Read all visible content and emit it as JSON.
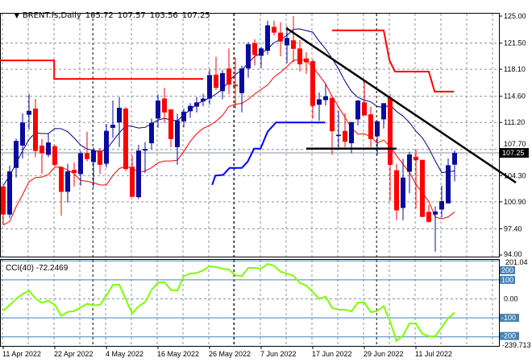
{
  "header": {
    "symbol": "BRENT.fs,Daily",
    "open": "105.72",
    "high": "107.57",
    "low": "103.56",
    "close": "107.25",
    "menu_icon": "triangle-down-icon"
  },
  "colors": {
    "bull": "#0a0a9e",
    "bear": "#ff0000",
    "ma_high": "#000080",
    "ma_low": "#ff0000",
    "resistance_step": "#ff0000",
    "support_step": "#0000ff",
    "trendline": "#000000",
    "cci": "#7fff00",
    "cci_level": "#4682b4"
  },
  "chart_data": [
    {
      "type": "candlestick",
      "title": "BRENT.fs,Daily",
      "ylim": [
        94.0,
        125.0
      ],
      "price_ticks": [
        "125.00",
        "121.50",
        "118.10",
        "114.60",
        "111.20",
        "107.70",
        "104.30",
        "100.90",
        "97.40",
        "94.00"
      ],
      "date_ticks": [
        {
          "bar": 0,
          "label": "11 Apr 2022"
        },
        {
          "bar": 8,
          "label": "22 Apr 2022"
        },
        {
          "bar": 16,
          "label": "4 May 2022"
        },
        {
          "bar": 24,
          "label": "16 May 2022"
        },
        {
          "bar": 32,
          "label": "26 May 2022"
        },
        {
          "bar": 40,
          "label": "7 Jun 2022"
        },
        {
          "bar": 48,
          "label": "17 Jun 2022"
        },
        {
          "bar": 56,
          "label": "29 Jun 2022"
        },
        {
          "bar": 64,
          "label": "11 Jul 2022"
        }
      ],
      "current_price": "107.25",
      "ohlc": [
        [
          102.9,
          103.0,
          97.9,
          99.25
        ],
        [
          99.25,
          105.6,
          98.8,
          104.85
        ],
        [
          105.3,
          109.1,
          104.05,
          108.8
        ],
        [
          108.2,
          112.4,
          106.55,
          111.2
        ],
        [
          112.2,
          114.9,
          110.3,
          112.7
        ],
        [
          113.0,
          114.25,
          106.7,
          107.5
        ],
        [
          108.2,
          109.05,
          104.5,
          107.2
        ],
        [
          107.0,
          109.75,
          106.7,
          108.6
        ],
        [
          108.1,
          108.3,
          105.5,
          105.7
        ],
        [
          105.4,
          105.4,
          99.1,
          102.2
        ],
        [
          102.2,
          105.85,
          100.8,
          104.85
        ],
        [
          105.05,
          106.0,
          102.9,
          104.65
        ],
        [
          104.5,
          107.5,
          103.0,
          107.2
        ],
        [
          107.2,
          110.0,
          106.15,
          106.45
        ],
        [
          106.05,
          107.95,
          102.8,
          107.55
        ],
        [
          107.55,
          107.9,
          104.5,
          105.7
        ],
        [
          105.85,
          111.0,
          105.35,
          110.1
        ],
        [
          110.5,
          114.05,
          109.2,
          110.9
        ],
        [
          111.2,
          114.5,
          108.0,
          113.1
        ],
        [
          113.0,
          113.2,
          104.9,
          105.15
        ],
        [
          105.45,
          106.9,
          101.5,
          101.55
        ],
        [
          101.5,
          108.3,
          101.25,
          107.55
        ],
        [
          107.55,
          108.65,
          104.65,
          107.75
        ],
        [
          108.5,
          111.7,
          107.7,
          111.15
        ],
        [
          111.7,
          114.85,
          110.5,
          114.05
        ],
        [
          114.3,
          115.7,
          111.1,
          112.5
        ],
        [
          112.9,
          112.9,
          108.0,
          109.05
        ],
        [
          108.0,
          112.35,
          105.7,
          111.45
        ],
        [
          111.35,
          113.0,
          110.55,
          112.6
        ],
        [
          112.65,
          113.7,
          111.8,
          113.35
        ],
        [
          113.25,
          114.5,
          112.5,
          113.8
        ],
        [
          113.95,
          114.9,
          113.3,
          114.3
        ],
        [
          114.3,
          118.05,
          113.5,
          117.35
        ],
        [
          117.4,
          119.7,
          115.4,
          115.7
        ],
        [
          115.25,
          118.0,
          114.2,
          117.6
        ],
        [
          118.2,
          120.8,
          114.9,
          116.1
        ],
        [
          116.1,
          119.6,
          113.0,
          115.9
        ],
        [
          115.0,
          118.55,
          112.5,
          118.2
        ],
        [
          118.2,
          121.6,
          117.0,
          121.35
        ],
        [
          121.5,
          122.0,
          118.6,
          119.95
        ],
        [
          119.85,
          121.0,
          118.3,
          120.8
        ],
        [
          120.5,
          124.4,
          120.0,
          123.8
        ],
        [
          123.6,
          124.4,
          122.5,
          122.85
        ],
        [
          122.85,
          124.2,
          119.8,
          121.7
        ],
        [
          121.2,
          123.7,
          118.9,
          122.15
        ],
        [
          121.85,
          125.0,
          119.0,
          120.75
        ],
        [
          120.8,
          121.9,
          117.8,
          118.75
        ],
        [
          119.5,
          120.3,
          117.5,
          119.0
        ],
        [
          119.15,
          119.4,
          111.65,
          113.35
        ],
        [
          113.5,
          115.1,
          111.4,
          114.2
        ],
        [
          114.1,
          116.25,
          113.4,
          114.6
        ],
        [
          114.4,
          114.4,
          107.0,
          110.05
        ],
        [
          109.5,
          112.7,
          107.95,
          109.6
        ],
        [
          110.1,
          112.4,
          108.0,
          108.7
        ],
        [
          108.5,
          111.25,
          107.2,
          111.25
        ],
        [
          111.6,
          114.1,
          110.8,
          114.05
        ],
        [
          113.8,
          116.65,
          112.1,
          112.1
        ],
        [
          112.25,
          113.2,
          108.0,
          109.05
        ],
        [
          109.4,
          111.35,
          107.0,
          111.35
        ],
        [
          111.6,
          113.7,
          110.4,
          113.7
        ],
        [
          114.4,
          114.9,
          101.0,
          105.7
        ],
        [
          105.0,
          105.8,
          98.55,
          99.8
        ],
        [
          100.1,
          106.5,
          98.5,
          104.05
        ],
        [
          104.8,
          107.4,
          102.0,
          107.05
        ],
        [
          106.75,
          107.7,
          100.0,
          106.3
        ],
        [
          106.35,
          106.35,
          98.9,
          98.95
        ],
        [
          99.6,
          100.5,
          98.2,
          98.3
        ],
        [
          99.25,
          100.3,
          94.45,
          99.65
        ],
        [
          99.9,
          103.0,
          98.9,
          101.0
        ],
        [
          100.7,
          106.55,
          100.7,
          105.65
        ],
        [
          105.72,
          107.57,
          103.56,
          107.25
        ]
      ],
      "overlays": {
        "resistance_step_1": [
          [
            -0.5,
            119.25
          ],
          [
            7.9,
            119.25
          ],
          [
            7.9,
            116.85
          ],
          [
            31,
            116.85
          ]
        ],
        "resistance_step_2": [
          [
            51,
            123.15
          ],
          [
            59,
            123.15
          ],
          [
            59.9,
            119.25
          ],
          [
            60.75,
            117.8
          ],
          [
            66,
            117.8
          ],
          [
            66.9,
            115.2
          ],
          [
            69.9,
            115.2
          ]
        ],
        "support_step": [
          [
            32.4,
            103.1
          ],
          [
            32.9,
            104.3
          ],
          [
            34.1,
            104.4
          ],
          [
            35.1,
            105.3
          ],
          [
            37,
            105.3
          ],
          [
            37.9,
            106.1
          ],
          [
            38.9,
            107.8
          ],
          [
            39.9,
            107.8
          ],
          [
            41,
            110.0
          ],
          [
            42.3,
            111.2
          ],
          [
            49.9,
            111.2
          ]
        ],
        "trendline": [
          [
            43.9,
            123.45
          ],
          [
            79.5,
            103.4
          ]
        ],
        "horizontal_line": [
          [
            47,
            107.8
          ],
          [
            61,
            107.8
          ]
        ]
      }
    },
    {
      "type": "line",
      "title": "CCI(40)",
      "current_value": "-72.2469",
      "label": "CCI(40) -72.2469",
      "ylim": [
        -239.713,
        201.04
      ],
      "max_label": "201.04",
      "min_label": "-239.713",
      "zero_label": "0.00",
      "level_labels": [
        {
          "v": 200,
          "t": "200"
        },
        {
          "v": 100,
          "t": "100"
        },
        {
          "v": -100,
          "t": "-100"
        },
        {
          "v": -200,
          "t": "-200"
        }
      ],
      "values": [
        -62,
        -33,
        0,
        25,
        43,
        2,
        -21,
        -9,
        -32,
        -90,
        -69,
        -64,
        -45,
        -26,
        -34,
        -32,
        17,
        73,
        75,
        -2,
        -77,
        -39,
        -17,
        47,
        86,
        88,
        47,
        43,
        120,
        133,
        136,
        150,
        172,
        167,
        159,
        154,
        124,
        120,
        163,
        163,
        159,
        184,
        174,
        143,
        133,
        122,
        84,
        70,
        36,
        -1,
        12,
        -48,
        -57,
        -57,
        -66,
        -19,
        -19,
        -70,
        -64,
        -38,
        -120,
        -222,
        -193,
        -130,
        -130,
        -184,
        -197,
        -197,
        -150,
        -102,
        -72.2469
      ]
    }
  ]
}
